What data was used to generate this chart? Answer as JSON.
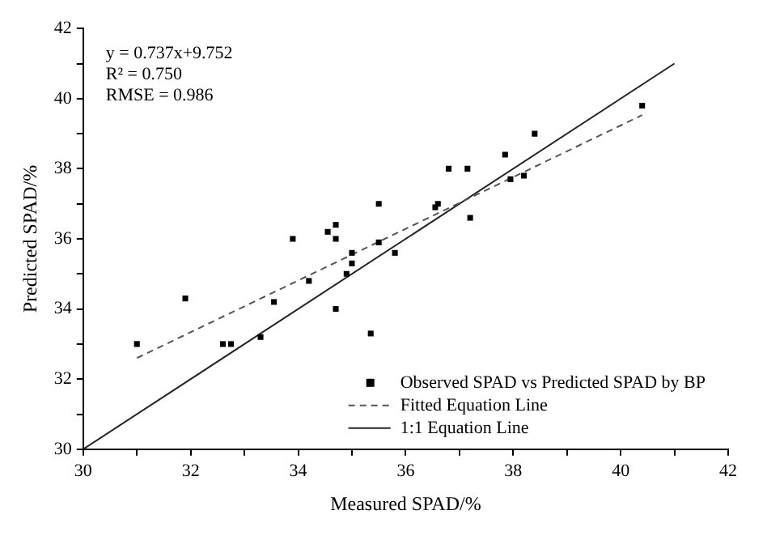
{
  "chart_data": {
    "type": "scatter",
    "xlabel": "Measured SPAD/%",
    "ylabel": "Predicted SPAD/%",
    "xlim": [
      30,
      42
    ],
    "ylim": [
      30,
      42
    ],
    "xticks": [
      30,
      {
        "value": 31,
        "label": null
      },
      32,
      {
        "value": 33,
        "label": null
      },
      34,
      {
        "value": 35,
        "label": null
      },
      36,
      {
        "value": 37,
        "label": null
      },
      38,
      {
        "value": 39,
        "label": null
      },
      40,
      {
        "value": 41,
        "label": null
      },
      42
    ],
    "yticks": [
      30,
      {
        "value": 31,
        "label": null
      },
      32,
      {
        "value": 33,
        "label": null
      },
      34,
      {
        "value": 35,
        "label": null
      },
      36,
      {
        "value": 37,
        "label": null
      },
      38,
      {
        "value": 39,
        "label": null
      },
      40,
      {
        "value": 41,
        "label": null
      },
      42
    ],
    "grid": false,
    "legend": "bottom right",
    "annotations": [
      "y = 0.737x+9.752",
      "R² = 0.750",
      "RMSE = 0.986"
    ],
    "series": [
      {
        "name": "Observed SPAD vs Predicted SPAD by BP",
        "marker": "square",
        "color": "#000000",
        "x": [
          31.0,
          31.9,
          32.6,
          32.75,
          33.3,
          33.55,
          34.2,
          34.7,
          34.9,
          35.0,
          35.35,
          33.9,
          34.55,
          34.7,
          34.7,
          35.0,
          35.5,
          35.5,
          35.8,
          36.55,
          36.6,
          36.8,
          37.15,
          37.2,
          37.85,
          37.95,
          38.2,
          38.4,
          40.4
        ],
        "values": [
          33.0,
          34.3,
          33.0,
          33.0,
          33.2,
          34.2,
          34.8,
          34.0,
          35.0,
          35.3,
          33.3,
          36.0,
          36.2,
          36.4,
          36.0,
          35.6,
          35.9,
          37.0,
          35.6,
          36.9,
          37.0,
          38.0,
          38.0,
          36.6,
          38.4,
          37.7,
          37.8,
          39.0,
          39.8
        ]
      },
      {
        "name": "Fitted Equation Line",
        "type": "line",
        "marker": "none",
        "line_style": "dashed",
        "color": "#555555",
        "x": [
          31.0,
          40.4
        ],
        "values": [
          32.6,
          39.53
        ]
      },
      {
        "name": "1:1 Equation Line",
        "type": "line",
        "marker": "none",
        "line_style": "solid",
        "color": "#222222",
        "x": [
          30,
          41
        ],
        "values": [
          30,
          41
        ]
      }
    ]
  }
}
